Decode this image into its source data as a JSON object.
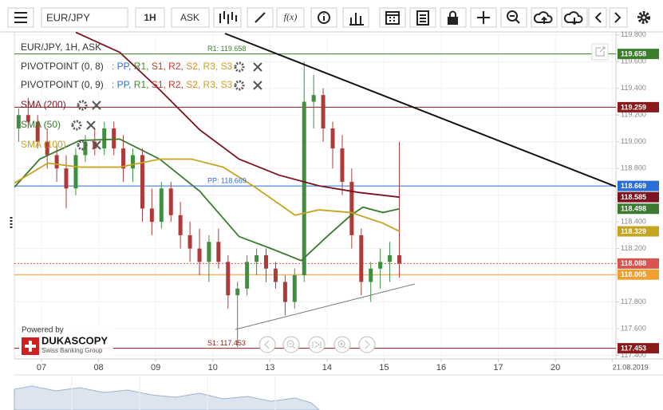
{
  "toolbar": {
    "symbol": "EUR/JPY",
    "period": "1H",
    "side": "ASK",
    "indicators": "f(x)"
  },
  "legend": {
    "instrument": "EUR/JPY, 1H, ASK",
    "rows": [
      {
        "name": "PIVOTPOINT (0, 8)",
        "items": [
          {
            "text": ": PP,",
            "color": "#2a6fd6"
          },
          {
            "text": " R1,",
            "color": "#3a8a2a"
          },
          {
            "text": " S1,",
            "color": "#c0392b"
          },
          {
            "text": " R2,",
            "color": "#c0392b"
          },
          {
            "text": " S2,",
            "color": "#e08a1e"
          },
          {
            "text": " R3,",
            "color": "#c9a227"
          },
          {
            "text": " S3",
            "color": "#d4a017"
          }
        ]
      },
      {
        "name": "PIVOTPOINT (0, 9)",
        "items": [
          {
            "text": ": PP,",
            "color": "#2a6fd6"
          },
          {
            "text": " R1,",
            "color": "#3a8a2a"
          },
          {
            "text": " S1,",
            "color": "#c0392b"
          },
          {
            "text": " R2,",
            "color": "#c0392b"
          },
          {
            "text": " S2,",
            "color": "#e08a1e"
          },
          {
            "text": " R3,",
            "color": "#c9a227"
          },
          {
            "text": " S3",
            "color": "#d4a017"
          }
        ]
      }
    ]
  },
  "branding": {
    "powered": "Powered by",
    "name": "DUKASCOPY",
    "tagline": "Swiss Banking Group"
  },
  "chart_data": {
    "type": "candlestick",
    "xlim": [
      -0.475,
      10.06
    ],
    "ylim": [
      117.373,
      119.823
    ],
    "xticks": [
      {
        "value": 0,
        "label": "07"
      },
      {
        "value": 1,
        "label": "08"
      },
      {
        "value": 2,
        "label": "09"
      },
      {
        "value": 3,
        "label": "10"
      },
      {
        "value": 4,
        "label": "13"
      },
      {
        "value": 5,
        "label": "14"
      },
      {
        "value": 6,
        "label": "15"
      },
      {
        "value": 7,
        "label": "16"
      },
      {
        "value": 8,
        "label": "17"
      },
      {
        "value": 9,
        "label": "20"
      },
      {
        "value": 10,
        "label": "21.08.2019"
      }
    ],
    "yticks": [
      {
        "value": 119.8,
        "label": "119.800"
      },
      {
        "value": 119.6,
        "label": "119.600"
      },
      {
        "value": 119.4,
        "label": "119.400"
      },
      {
        "value": 119.2,
        "label": "119.200"
      },
      {
        "value": 119.0,
        "label": "119.000"
      },
      {
        "value": 118.8,
        "label": "118.800"
      },
      {
        "value": 118.6,
        "label": "118.600"
      },
      {
        "value": 118.4,
        "label": "118.400"
      },
      {
        "value": 118.2,
        "label": "118.200"
      },
      {
        "value": 118.0,
        "label": "118.000"
      },
      {
        "value": 117.8,
        "label": "117.800"
      },
      {
        "value": 117.6,
        "label": "117.600"
      },
      {
        "value": 117.4,
        "label": "117.400"
      }
    ],
    "up_color": "#3f8f3f",
    "down_color": "#b03a3a",
    "candles": {
      "x": [
        -0.4,
        -0.233,
        -0.067,
        0.1,
        0.267,
        0.433,
        0.6,
        0.767,
        0.933,
        1.1,
        1.267,
        1.433,
        1.6,
        1.767,
        1.933,
        2.1,
        2.267,
        2.433,
        2.6,
        2.767,
        2.933,
        3.1,
        3.267,
        3.433,
        3.6,
        3.767,
        3.933,
        4.1,
        4.267,
        4.433,
        4.6,
        4.767,
        4.933,
        5.1,
        5.267,
        5.433,
        5.6,
        5.767,
        5.933,
        6.1,
        6.267
      ],
      "open": [
        119.1,
        119.2,
        119.15,
        119.0,
        118.9,
        118.8,
        118.65,
        118.9,
        119.0,
        118.95,
        119.1,
        118.95,
        118.8,
        118.9,
        118.5,
        118.4,
        118.65,
        118.45,
        118.3,
        118.2,
        118.1,
        118.25,
        118.1,
        117.85,
        117.9,
        118.1,
        118.15,
        118.05,
        117.95,
        117.8,
        118.0,
        119.3,
        119.35,
        119.1,
        118.95,
        118.7,
        118.3,
        117.95,
        118.05,
        118.1,
        118.15
      ],
      "high": [
        119.25,
        119.33,
        119.2,
        119.1,
        118.98,
        118.9,
        118.95,
        119.05,
        119.1,
        119.15,
        119.15,
        119.05,
        118.95,
        118.95,
        118.65,
        118.7,
        118.7,
        118.55,
        118.4,
        118.35,
        118.3,
        118.35,
        118.15,
        117.95,
        118.15,
        118.2,
        118.2,
        118.1,
        118.0,
        118.05,
        119.6,
        119.5,
        119.4,
        119.15,
        119.05,
        118.8,
        118.35,
        118.1,
        118.2,
        118.25,
        119.0
      ],
      "low": [
        119.0,
        119.1,
        118.95,
        118.8,
        118.7,
        118.5,
        118.6,
        118.85,
        118.9,
        118.9,
        118.9,
        118.7,
        118.7,
        118.4,
        118.3,
        118.35,
        118.4,
        118.2,
        118.1,
        118.0,
        117.95,
        118.05,
        117.75,
        117.46,
        117.85,
        118.0,
        117.95,
        117.9,
        117.7,
        117.75,
        117.95,
        119.1,
        119.0,
        118.8,
        118.6,
        118.2,
        117.85,
        117.8,
        117.9,
        117.95,
        117.98
      ],
      "close": [
        119.2,
        119.15,
        119.0,
        118.9,
        118.8,
        118.65,
        118.9,
        119.0,
        118.95,
        119.1,
        118.95,
        118.8,
        118.9,
        118.5,
        118.4,
        118.65,
        118.45,
        118.3,
        118.2,
        118.1,
        118.25,
        118.1,
        117.85,
        117.9,
        118.1,
        118.15,
        118.05,
        117.95,
        117.8,
        118.0,
        119.3,
        119.35,
        119.1,
        118.95,
        118.7,
        118.3,
        117.95,
        118.05,
        118.1,
        118.15,
        118.088
      ]
    },
    "series": [
      {
        "name": "SMA (200)",
        "color": "#7a1420",
        "x": [
          0.6,
          1.37,
          2.07,
          2.77,
          3.46,
          4.16,
          4.86,
          5.56,
          6.27
        ],
        "values": [
          119.82,
          119.67,
          119.39,
          119.09,
          118.87,
          118.75,
          118.67,
          118.62,
          118.585
        ]
      },
      {
        "name": "SMA (50)",
        "color": "#3c7a30",
        "x": [
          -0.475,
          -0.03,
          0.67,
          1.37,
          2.07,
          2.77,
          3.46,
          4.02,
          4.55,
          5.0,
          5.42,
          5.63,
          5.98,
          6.27
        ],
        "values": [
          118.66,
          118.87,
          119.01,
          119.02,
          118.87,
          118.63,
          118.29,
          118.2,
          118.11,
          118.29,
          118.45,
          118.51,
          118.47,
          118.498
        ]
      },
      {
        "name": "SMA (100)",
        "color": "#c5a41e",
        "x": [
          -0.475,
          0.11,
          0.67,
          1.37,
          2.07,
          2.63,
          3.18,
          3.74,
          4.44,
          4.86,
          5.42,
          5.98,
          6.27
        ],
        "values": [
          118.69,
          118.84,
          118.81,
          118.81,
          118.87,
          118.87,
          118.81,
          118.66,
          118.45,
          118.49,
          118.47,
          118.39,
          118.329
        ]
      }
    ],
    "price_tags": [
      {
        "value": 119.658,
        "label": "119.658",
        "color": "#3a7d2a",
        "line": "solid",
        "name": "R1: 119.658"
      },
      {
        "value": 119.259,
        "label": "119.259",
        "color": "#8b1a1a",
        "line": "solid"
      },
      {
        "value": 118.669,
        "label": "118.669",
        "color": "#2a6fd6",
        "line": "solid",
        "name": "PP: 118.669"
      },
      {
        "value": 118.585,
        "label": "118.585",
        "color": "#7a1420"
      },
      {
        "value": 118.498,
        "label": "118.498",
        "color": "#3c7a30"
      },
      {
        "value": 118.329,
        "label": "118.329",
        "color": "#c5a41e"
      },
      {
        "value": 118.088,
        "label": "118.088",
        "color": "#d9534f",
        "line": "dotted"
      },
      {
        "value": 118.005,
        "label": "118.005",
        "color": "#f0a030",
        "line": "solid"
      },
      {
        "value": 117.453,
        "label": "117.453",
        "color": "#8b1a1a",
        "line": "solid",
        "name": "S1: 117.453"
      }
    ]
  }
}
